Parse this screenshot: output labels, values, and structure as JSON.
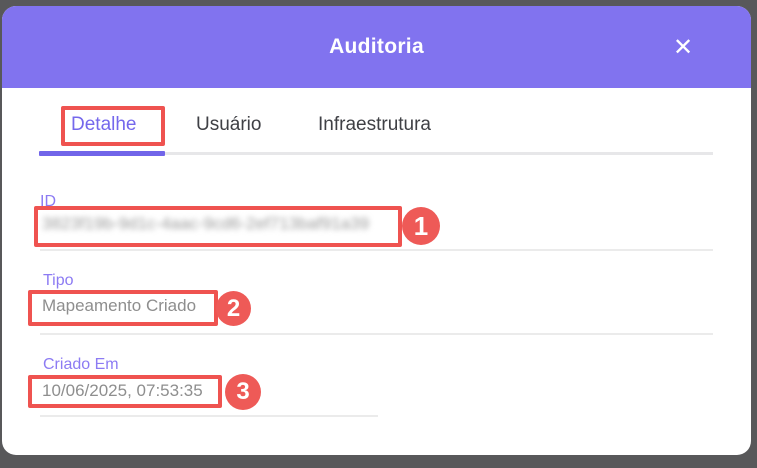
{
  "modal": {
    "title": "Auditoria",
    "close_icon": "✕"
  },
  "tabs": [
    {
      "label": "Detalhe",
      "active": true,
      "annotated": true
    },
    {
      "label": "Usuário",
      "active": false
    },
    {
      "label": "Infraestrutura",
      "active": false
    }
  ],
  "fields": [
    {
      "label": "ID",
      "value": "3823f19b-9d1c-4aac-9cd6-2ef713baf91a39",
      "redacted": true,
      "annotation_number": "1"
    },
    {
      "label": "Tipo",
      "value": "Mapeamento Criado",
      "redacted": false,
      "annotation_number": "2"
    },
    {
      "label": "Criado Em",
      "value": "10/06/2025, 07:53:35",
      "redacted": false,
      "annotation_number": "3"
    }
  ],
  "colors": {
    "backdrop": "#58585a",
    "header_purple": "#8173ef",
    "active_tab_purple": "#7568ec",
    "label_purple": "#8c7bf3",
    "value_gray": "#8e8e8e",
    "annotation_red": "#ef5350",
    "circle_red": "#ee5a57"
  }
}
